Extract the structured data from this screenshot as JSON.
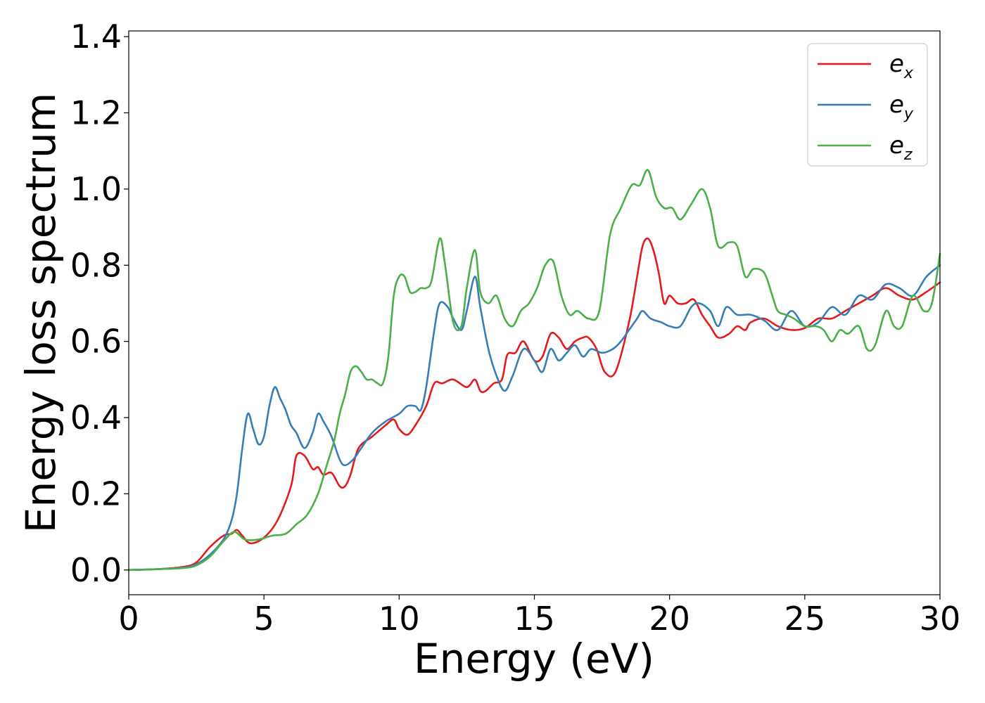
{
  "chart_data": {
    "type": "line",
    "title": "",
    "xlabel": "Energy (eV)",
    "ylabel": "Energy loss spectrum",
    "xlim": [
      0,
      30
    ],
    "ylim": [
      -0.065,
      1.415
    ],
    "xticks": [
      0,
      5,
      10,
      15,
      20,
      25,
      30
    ],
    "xtick_labels": [
      "0",
      "5",
      "10",
      "15",
      "20",
      "25",
      "30"
    ],
    "yticks": [
      0.0,
      0.2,
      0.4,
      0.6,
      0.8,
      1.0,
      1.2,
      1.4
    ],
    "ytick_labels": [
      "0.0",
      "0.2",
      "0.4",
      "0.6",
      "0.8",
      "1.0",
      "1.2",
      "1.4"
    ],
    "grid": false,
    "legend_position": "top-right",
    "series": [
      {
        "name": "e_x",
        "legend_base": "e",
        "legend_sub": "x",
        "color": "#e41a1c",
        "x": [
          0,
          1,
          2,
          2.5,
          3,
          3.5,
          3.8,
          4.0,
          4.2,
          4.5,
          5.0,
          5.5,
          6.0,
          6.2,
          6.5,
          6.8,
          7.0,
          7.2,
          7.5,
          7.8,
          8.0,
          8.2,
          8.5,
          9.0,
          9.5,
          9.8,
          10.0,
          10.3,
          10.6,
          11.0,
          11.3,
          11.6,
          12.0,
          12.5,
          12.8,
          13.0,
          13.2,
          13.5,
          13.8,
          14.0,
          14.3,
          14.6,
          15.0,
          15.3,
          15.6,
          15.9,
          16.2,
          16.5,
          16.8,
          17.0,
          17.3,
          17.6,
          18.0,
          18.5,
          18.8,
          19.0,
          19.2,
          19.4,
          19.6,
          19.8,
          20.0,
          20.3,
          20.6,
          20.9,
          21.2,
          21.5,
          21.8,
          22.2,
          22.5,
          22.8,
          23.0,
          23.5,
          24.0,
          24.5,
          25.0,
          25.5,
          26.0,
          26.5,
          27.0,
          27.5,
          28.0,
          28.5,
          29.0,
          29.5,
          30.0
        ],
        "y": [
          0.0,
          0.002,
          0.008,
          0.02,
          0.06,
          0.09,
          0.095,
          0.105,
          0.09,
          0.07,
          0.085,
          0.13,
          0.22,
          0.3,
          0.3,
          0.265,
          0.27,
          0.25,
          0.255,
          0.22,
          0.22,
          0.25,
          0.32,
          0.35,
          0.38,
          0.395,
          0.37,
          0.355,
          0.38,
          0.43,
          0.49,
          0.49,
          0.5,
          0.48,
          0.5,
          0.47,
          0.47,
          0.49,
          0.5,
          0.565,
          0.57,
          0.6,
          0.55,
          0.56,
          0.62,
          0.61,
          0.58,
          0.6,
          0.61,
          0.61,
          0.58,
          0.52,
          0.52,
          0.65,
          0.77,
          0.85,
          0.87,
          0.84,
          0.78,
          0.7,
          0.72,
          0.7,
          0.7,
          0.71,
          0.67,
          0.64,
          0.61,
          0.62,
          0.64,
          0.63,
          0.65,
          0.66,
          0.64,
          0.63,
          0.635,
          0.66,
          0.66,
          0.68,
          0.7,
          0.72,
          0.74,
          0.72,
          0.71,
          0.73,
          0.755
        ]
      },
      {
        "name": "e_y",
        "legend_base": "e",
        "legend_sub": "y",
        "color": "#377eb8",
        "x": [
          0,
          1,
          2,
          2.5,
          3,
          3.5,
          3.8,
          4.0,
          4.2,
          4.4,
          4.6,
          4.8,
          5.0,
          5.2,
          5.4,
          5.6,
          5.8,
          6.0,
          6.2,
          6.5,
          6.8,
          7.0,
          7.2,
          7.5,
          7.8,
          8.0,
          8.3,
          8.6,
          9.0,
          9.5,
          10.0,
          10.3,
          10.6,
          10.8,
          11.0,
          11.3,
          11.5,
          11.8,
          12.0,
          12.3,
          12.5,
          12.8,
          13.0,
          13.3,
          13.6,
          13.9,
          14.2,
          14.6,
          15.0,
          15.3,
          15.6,
          15.9,
          16.2,
          16.5,
          16.8,
          17.1,
          17.5,
          17.9,
          18.2,
          18.5,
          18.8,
          19.0,
          19.3,
          19.7,
          20.0,
          20.4,
          20.8,
          21.1,
          21.5,
          21.8,
          22.1,
          22.5,
          23.0,
          23.5,
          24.0,
          24.5,
          25.0,
          25.5,
          26.0,
          26.5,
          27.0,
          27.5,
          28.0,
          28.5,
          29.0,
          29.5,
          30.0
        ],
        "y": [
          0.0,
          0.002,
          0.006,
          0.015,
          0.04,
          0.08,
          0.13,
          0.2,
          0.32,
          0.41,
          0.37,
          0.33,
          0.35,
          0.43,
          0.48,
          0.45,
          0.42,
          0.38,
          0.36,
          0.32,
          0.36,
          0.41,
          0.39,
          0.35,
          0.29,
          0.275,
          0.29,
          0.32,
          0.36,
          0.39,
          0.41,
          0.43,
          0.43,
          0.42,
          0.48,
          0.63,
          0.7,
          0.69,
          0.66,
          0.63,
          0.68,
          0.77,
          0.69,
          0.58,
          0.51,
          0.47,
          0.51,
          0.58,
          0.55,
          0.52,
          0.58,
          0.55,
          0.57,
          0.59,
          0.56,
          0.58,
          0.57,
          0.58,
          0.6,
          0.63,
          0.66,
          0.68,
          0.66,
          0.65,
          0.64,
          0.64,
          0.69,
          0.7,
          0.68,
          0.64,
          0.69,
          0.67,
          0.67,
          0.655,
          0.63,
          0.68,
          0.64,
          0.65,
          0.69,
          0.67,
          0.72,
          0.71,
          0.75,
          0.74,
          0.72,
          0.77,
          0.8
        ]
      },
      {
        "name": "e_z",
        "legend_base": "e",
        "legend_sub": "z",
        "color": "#4daf4a",
        "x": [
          0,
          1,
          2,
          2.5,
          3,
          3.5,
          3.9,
          4.3,
          4.8,
          5.3,
          5.8,
          6.2,
          6.6,
          7.0,
          7.3,
          7.6,
          7.8,
          8.0,
          8.2,
          8.4,
          8.6,
          8.8,
          9.0,
          9.2,
          9.4,
          9.6,
          9.8,
          10.0,
          10.2,
          10.4,
          10.6,
          10.8,
          11.0,
          11.2,
          11.5,
          11.7,
          12.0,
          12.3,
          12.5,
          12.8,
          13.0,
          13.3,
          13.6,
          13.9,
          14.2,
          14.5,
          14.8,
          15.1,
          15.4,
          15.7,
          16.0,
          16.3,
          16.6,
          17.0,
          17.4,
          17.8,
          18.2,
          18.6,
          18.9,
          19.2,
          19.5,
          19.8,
          20.1,
          20.4,
          20.8,
          21.2,
          21.5,
          21.8,
          22.2,
          22.5,
          22.8,
          23.1,
          23.5,
          23.8,
          24.0,
          24.3,
          24.6,
          25.0,
          25.4,
          25.7,
          26.0,
          26.3,
          26.6,
          27.0,
          27.3,
          27.6,
          28.0,
          28.3,
          28.6,
          29.0,
          29.4,
          29.7,
          30.0
        ],
        "y": [
          0.0,
          0.002,
          0.005,
          0.012,
          0.035,
          0.075,
          0.1,
          0.08,
          0.08,
          0.09,
          0.095,
          0.12,
          0.145,
          0.2,
          0.27,
          0.34,
          0.41,
          0.46,
          0.52,
          0.535,
          0.52,
          0.5,
          0.5,
          0.49,
          0.49,
          0.56,
          0.72,
          0.77,
          0.77,
          0.73,
          0.73,
          0.74,
          0.74,
          0.76,
          0.87,
          0.8,
          0.65,
          0.64,
          0.74,
          0.84,
          0.73,
          0.7,
          0.72,
          0.66,
          0.64,
          0.68,
          0.7,
          0.74,
          0.8,
          0.81,
          0.72,
          0.67,
          0.68,
          0.66,
          0.68,
          0.88,
          0.95,
          1.01,
          1.01,
          1.05,
          0.98,
          0.95,
          0.95,
          0.92,
          0.96,
          1.0,
          0.95,
          0.85,
          0.86,
          0.85,
          0.77,
          0.79,
          0.78,
          0.72,
          0.68,
          0.67,
          0.66,
          0.64,
          0.64,
          0.63,
          0.6,
          0.63,
          0.62,
          0.64,
          0.58,
          0.59,
          0.68,
          0.64,
          0.64,
          0.72,
          0.68,
          0.7,
          0.83
        ]
      }
    ]
  }
}
